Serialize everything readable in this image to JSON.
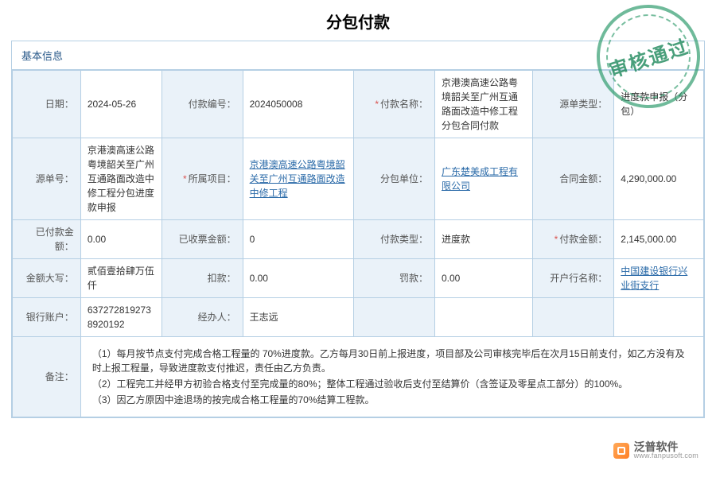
{
  "title": "分包付款",
  "section_header": "基本信息",
  "stamp_text": "审核通过",
  "colors": {
    "border": "#b5cfe4",
    "label_bg": "#eaf2f9",
    "link": "#2a6aa8",
    "required_star": "#d9534f",
    "stamp": "#2e9b6c"
  },
  "labels": {
    "date": "日期：",
    "pay_no": "付款编号：",
    "pay_name": "付款名称：",
    "source_type": "源单类型：",
    "source_no": "源单号：",
    "project": "所属项目：",
    "sub_unit": "分包单位：",
    "contract_amount": "合同金额：",
    "paid_amount": "已付款金额：",
    "invoice_amount": "已收票金额：",
    "pay_type": "付款类型：",
    "pay_amount": "付款金额：",
    "amount_words": "金额大写：",
    "deduct": "扣款：",
    "penalty": "罚款：",
    "bank_name": "开户行名称：",
    "bank_account": "银行账户：",
    "handler": "经办人：",
    "remarks": "备注："
  },
  "required": {
    "pay_name": true,
    "project": true,
    "pay_amount": true
  },
  "values": {
    "date": "2024-05-26",
    "pay_no": "2024050008",
    "pay_name": "京港澳高速公路粤境韶关至广州互通路面改造中修工程分包合同付款",
    "source_type": "进度款申报（分包）",
    "source_no": "京港澳高速公路粤境韶关至广州互通路面改造中修工程分包进度款申报",
    "project": "京港澳高速公路粤境韶关至广州互通路面改造中修工程",
    "sub_unit": "广东楚美成工程有限公司",
    "contract_amount": "4,290,000.00",
    "paid_amount": "0.00",
    "invoice_amount": "0",
    "pay_type": "进度款",
    "pay_amount": "2,145,000.00",
    "amount_words": "贰佰壹拾肆万伍仟",
    "deduct": "0.00",
    "penalty": "0.00",
    "bank_name": "中国建设银行兴业街支行",
    "bank_account": "637272819273892​0192",
    "handler": "王志远"
  },
  "remarks": [
    "（1）每月按节点支付完成合格工程量的 70%进度款。乙方每月30日前上报进度，项目部及公司审核完毕后在次月15日前支付，如乙方没有及时上报工程量，导致进度款支付推迟，责任由乙方负责。",
    "（2）工程完工并经甲方初验合格支付至完成量的80%；整体工程通过验收后支付至结算价（含签证及零星点工部分）的100%。",
    "（3）因乙方原因中途退场的按完成合格工程量的70%结算工程款。"
  ],
  "watermark": {
    "cn": "泛普软件",
    "en": "www.fanpusoft.com"
  }
}
